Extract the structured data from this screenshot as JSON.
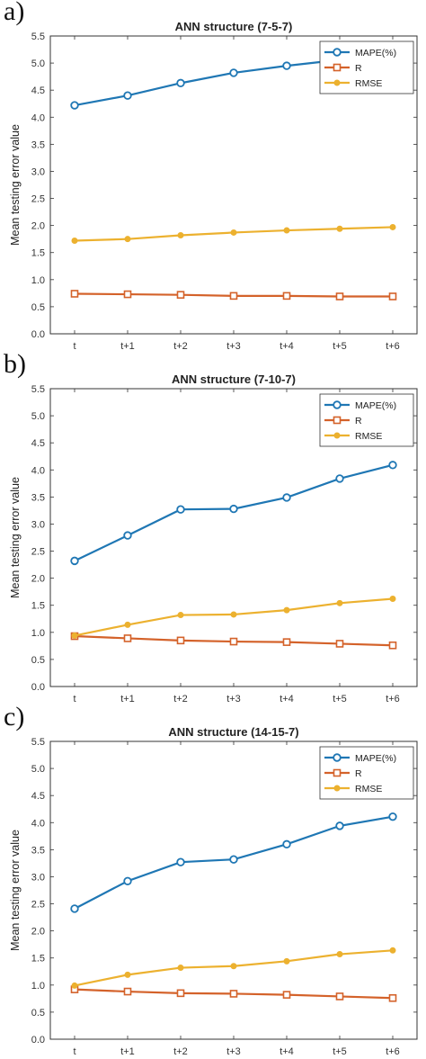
{
  "chart_data": [
    {
      "panel_label": "a)",
      "type": "line",
      "title": "ANN structure (7-5-7)",
      "xlabel": "",
      "ylabel": "Mean testing error value",
      "categories": [
        "t",
        "t+1",
        "t+2",
        "t+3",
        "t+4",
        "t+5",
        "t+6"
      ],
      "ylim": [
        0,
        5.5
      ],
      "yticks": [
        "0.0",
        "0.5",
        "1.0",
        "1.5",
        "2.0",
        "2.5",
        "3.0",
        "3.5",
        "4.0",
        "4.5",
        "5.0",
        "5.5"
      ],
      "legend": "top-right",
      "series": [
        {
          "name": "MAPE(%)",
          "color": "#1f77b4",
          "marker": "circle",
          "values": [
            4.22,
            4.4,
            4.63,
            4.82,
            4.95,
            5.06,
            5.14
          ]
        },
        {
          "name": "R",
          "color": "#d4622a",
          "marker": "square",
          "values": [
            0.74,
            0.73,
            0.72,
            0.7,
            0.7,
            0.69,
            0.69
          ]
        },
        {
          "name": "RMSE",
          "color": "#ecb12f",
          "marker": "dot",
          "values": [
            1.72,
            1.75,
            1.82,
            1.87,
            1.91,
            1.94,
            1.97
          ]
        }
      ]
    },
    {
      "panel_label": "b)",
      "type": "line",
      "title": "ANN structure (7-10-7)",
      "xlabel": "",
      "ylabel": "Mean testing error value",
      "categories": [
        "t",
        "t+1",
        "t+2",
        "t+3",
        "t+4",
        "t+5",
        "t+6"
      ],
      "ylim": [
        0,
        5.5
      ],
      "yticks": [
        "0.0",
        "0.5",
        "1.0",
        "1.5",
        "2.0",
        "2.5",
        "3.0",
        "3.5",
        "4.0",
        "4.5",
        "5.0",
        "5.5"
      ],
      "legend": "top-right",
      "series": [
        {
          "name": "MAPE(%)",
          "color": "#1f77b4",
          "marker": "circle",
          "values": [
            2.32,
            2.79,
            3.27,
            3.28,
            3.49,
            3.84,
            4.09
          ]
        },
        {
          "name": "R",
          "color": "#d4622a",
          "marker": "square",
          "values": [
            0.93,
            0.89,
            0.85,
            0.83,
            0.82,
            0.79,
            0.76
          ]
        },
        {
          "name": "RMSE",
          "color": "#ecb12f",
          "marker": "dot",
          "values": [
            0.94,
            1.14,
            1.32,
            1.33,
            1.41,
            1.54,
            1.62
          ]
        }
      ]
    },
    {
      "panel_label": "c)",
      "type": "line",
      "title": "ANN structure (14-15-7)",
      "xlabel": "",
      "ylabel": "Mean testing error value",
      "categories": [
        "t",
        "t+1",
        "t+2",
        "t+3",
        "t+4",
        "t+5",
        "t+6"
      ],
      "ylim": [
        0,
        5.5
      ],
      "yticks": [
        "0.0",
        "0.5",
        "1.0",
        "1.5",
        "2.0",
        "2.5",
        "3.0",
        "3.5",
        "4.0",
        "4.5",
        "5.0",
        "5.5"
      ],
      "legend": "top-right",
      "series": [
        {
          "name": "MAPE(%)",
          "color": "#1f77b4",
          "marker": "circle",
          "values": [
            2.41,
            2.92,
            3.27,
            3.32,
            3.6,
            3.94,
            4.11
          ]
        },
        {
          "name": "R",
          "color": "#d4622a",
          "marker": "square",
          "values": [
            0.92,
            0.88,
            0.85,
            0.84,
            0.82,
            0.79,
            0.76
          ]
        },
        {
          "name": "RMSE",
          "color": "#ecb12f",
          "marker": "dot",
          "values": [
            0.99,
            1.19,
            1.32,
            1.35,
            1.44,
            1.57,
            1.64
          ]
        }
      ]
    }
  ]
}
